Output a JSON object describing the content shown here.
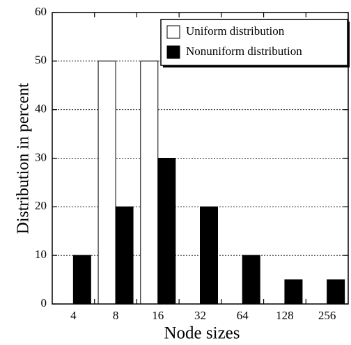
{
  "chart_data": {
    "type": "bar",
    "xlabel": "Node sizes",
    "ylabel": "Distribution in percent",
    "categories": [
      "4",
      "8",
      "16",
      "32",
      "64",
      "128",
      "256"
    ],
    "series": [
      {
        "name": "Uniform distribution",
        "color": "#ffffff",
        "values": [
          0,
          50,
          50,
          0,
          0,
          0,
          0
        ]
      },
      {
        "name": "Nonuniform distribution",
        "color": "#000000",
        "values": [
          10,
          20,
          30,
          20,
          10,
          5,
          5
        ]
      }
    ],
    "ylim": [
      0,
      60
    ],
    "yticks": [
      0,
      10,
      20,
      30,
      40,
      50,
      60
    ],
    "grid": true,
    "legend": "upper right"
  }
}
